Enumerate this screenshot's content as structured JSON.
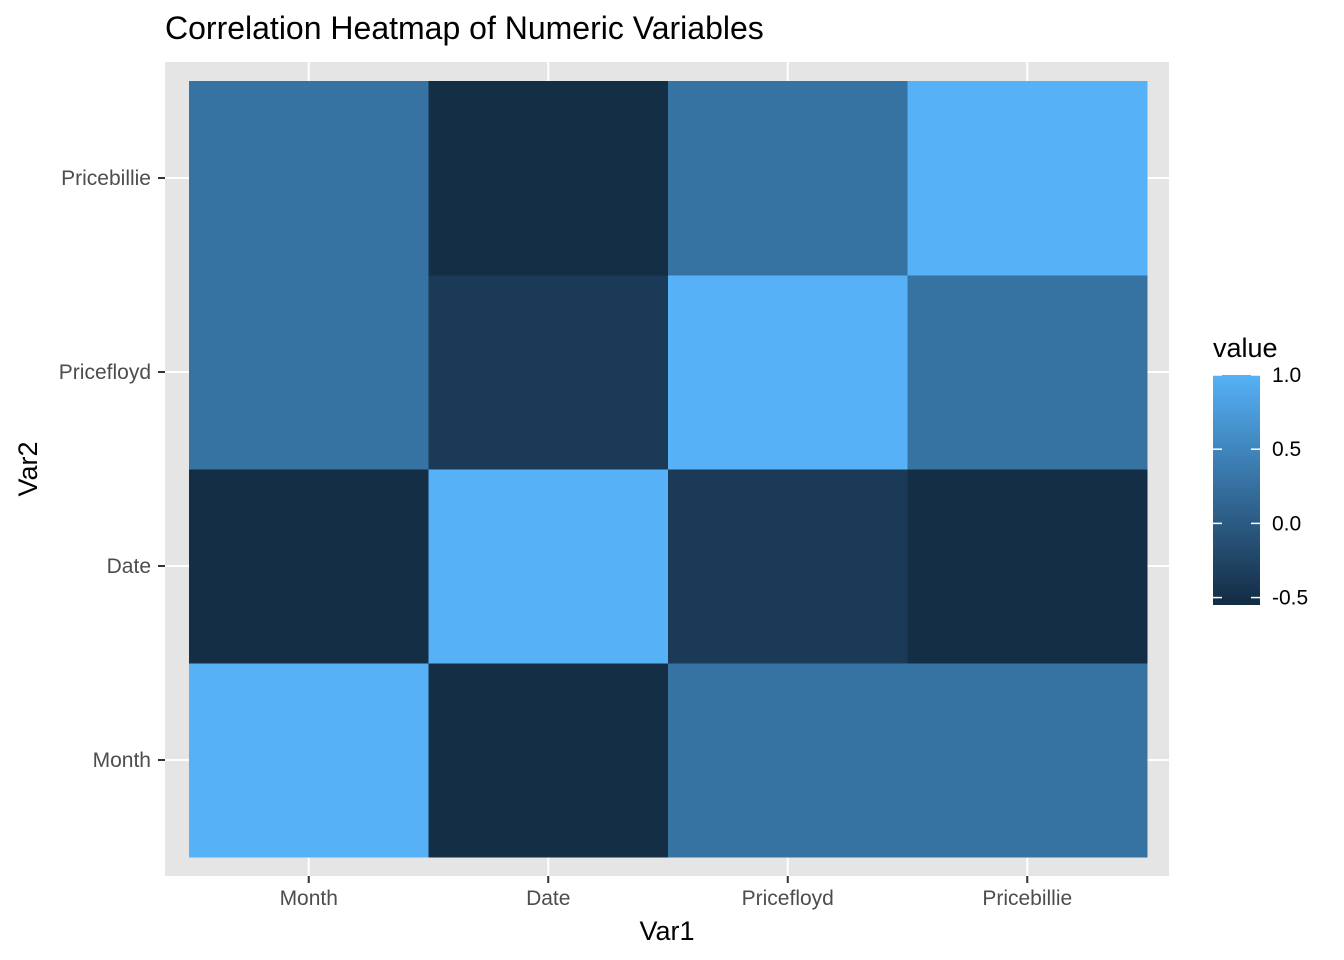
{
  "chart_data": {
    "type": "heatmap",
    "title": "Correlation Heatmap of Numeric Variables",
    "xlabel": "Var1",
    "ylabel": "Var2",
    "x_categories": [
      "Month",
      "Date",
      "Pricefloyd",
      "Pricebillie"
    ],
    "y_categories": [
      "Month",
      "Date",
      "Pricefloyd",
      "Pricebillie"
    ],
    "values": [
      [
        1.0,
        -0.52,
        0.27,
        0.27
      ],
      [
        -0.52,
        1.0,
        -0.38,
        -0.52
      ],
      [
        0.27,
        -0.38,
        1.0,
        0.27
      ],
      [
        0.27,
        -0.52,
        0.27,
        1.0
      ]
    ],
    "value_note": "values[i][j]: row i = Var2 category index, column j = Var1 category index",
    "colorbar": {
      "title": "value",
      "ticks": [
        1.0,
        0.5,
        0.0,
        -0.5
      ],
      "tick_labels": [
        "1.0",
        "0.5",
        "0.0",
        "-0.5"
      ],
      "range": [
        -0.55,
        1.0
      ],
      "low_color": "#132B43",
      "high_color": "#56B1F7"
    },
    "panel_background": "#e5e5e5",
    "grid_color": "#ffffff",
    "grid": true,
    "legend_position": "right"
  }
}
